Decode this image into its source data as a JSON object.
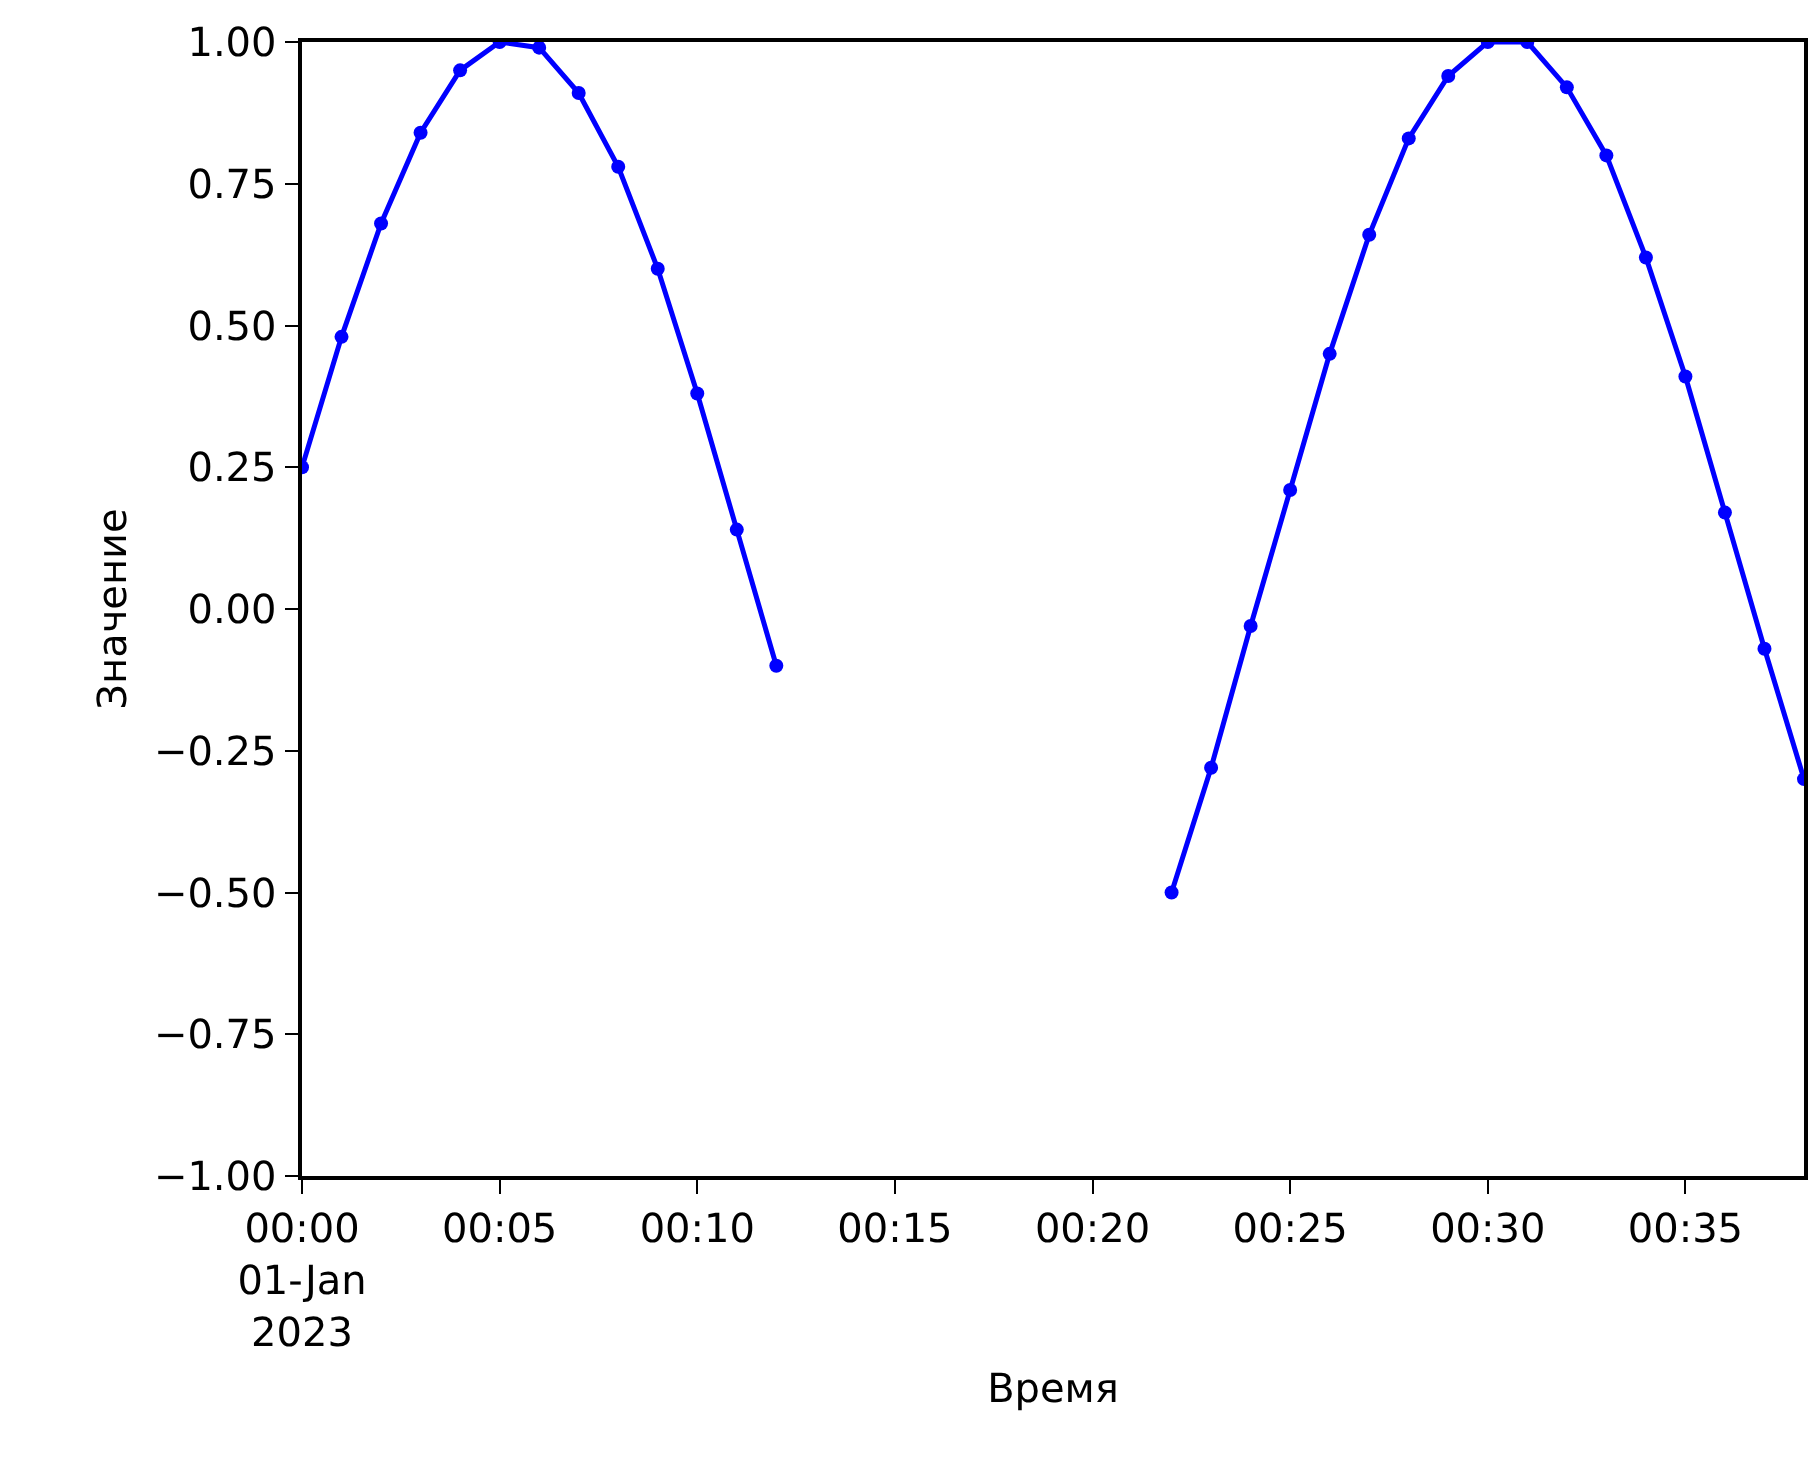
{
  "chart_data": {
    "type": "line",
    "xlabel": "Время",
    "ylabel": "Значение",
    "x": [
      "2023-01-01T00:00",
      "2023-01-01T00:01",
      "2023-01-01T00:02",
      "2023-01-01T00:03",
      "2023-01-01T00:04",
      "2023-01-01T00:05",
      "2023-01-01T00:06",
      "2023-01-01T00:07",
      "2023-01-01T00:08",
      "2023-01-01T00:09",
      "2023-01-01T00:10",
      "2023-01-01T00:11",
      "2023-01-01T00:12",
      "2023-01-01T00:13",
      "2023-01-01T00:14",
      "2023-01-01T00:15",
      "2023-01-01T00:16",
      "2023-01-01T00:17",
      "2023-01-01T00:18",
      "2023-01-01T00:19",
      "2023-01-01T00:20",
      "2023-01-01T00:21",
      "2023-01-01T00:22",
      "2023-01-01T00:23",
      "2023-01-01T00:24",
      "2023-01-01T00:25",
      "2023-01-01T00:26",
      "2023-01-01T00:27",
      "2023-01-01T00:28",
      "2023-01-01T00:29",
      "2023-01-01T00:30",
      "2023-01-01T00:31",
      "2023-01-01T00:32",
      "2023-01-01T00:33",
      "2023-01-01T00:34",
      "2023-01-01T00:35",
      "2023-01-01T00:36",
      "2023-01-01T00:37",
      "2023-01-01T00:38"
    ],
    "series": [
      {
        "color": "#0000ff",
        "values": [
          0.25,
          0.48,
          0.68,
          0.84,
          0.95,
          1.0,
          0.99,
          0.91,
          0.78,
          0.6,
          0.38,
          0.14,
          -0.1,
          null,
          null,
          null,
          null,
          null,
          null,
          null,
          null,
          null,
          -0.5,
          -0.28,
          -0.03,
          0.21,
          0.45,
          0.66,
          0.83,
          0.94,
          1.0,
          1.0,
          0.92,
          0.8,
          0.62,
          0.41,
          0.17,
          -0.07,
          -0.3
        ]
      }
    ],
    "xlim": [
      "2023-01-01T00:00",
      "2023-01-01T00:38"
    ],
    "xticks": [
      {
        "value": "2023-01-01T00:00",
        "label": "00:00\n01-Jan\n2023"
      },
      {
        "value": "2023-01-01T00:05",
        "label": "00:05"
      },
      {
        "value": "2023-01-01T00:10",
        "label": "00:10"
      },
      {
        "value": "2023-01-01T00:15",
        "label": "00:15"
      },
      {
        "value": "2023-01-01T00:20",
        "label": "00:20"
      },
      {
        "value": "2023-01-01T00:25",
        "label": "00:25"
      },
      {
        "value": "2023-01-01T00:30",
        "label": "00:30"
      },
      {
        "value": "2023-01-01T00:35",
        "label": "00:35"
      }
    ],
    "ylim": [
      -1.0,
      1.0
    ],
    "yticks": [
      {
        "value": -1.0,
        "label": "−1.00"
      },
      {
        "value": -0.75,
        "label": "−0.75"
      },
      {
        "value": -0.5,
        "label": "−0.50"
      },
      {
        "value": -0.25,
        "label": "−0.25"
      },
      {
        "value": 0.0,
        "label": "0.00"
      },
      {
        "value": 0.25,
        "label": "0.25"
      },
      {
        "value": 0.5,
        "label": "0.50"
      },
      {
        "value": 0.75,
        "label": "0.75"
      },
      {
        "value": 1.0,
        "label": "1.00"
      }
    ],
    "marker": "circle",
    "line_style": "solid"
  }
}
